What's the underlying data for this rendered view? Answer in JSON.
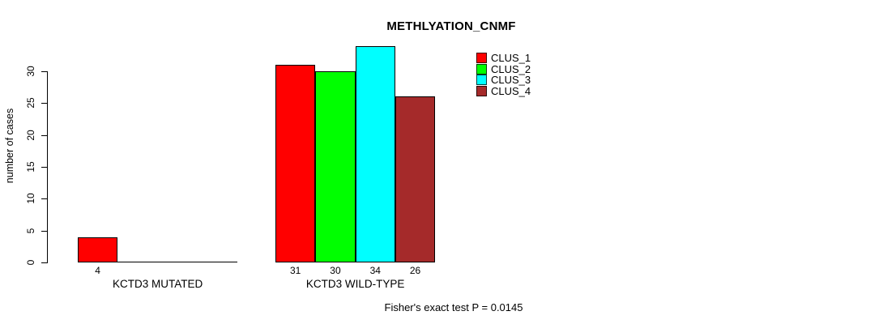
{
  "title": "METHLYATION_CNMF",
  "footer": "Fisher's exact test P = 0.0145",
  "y_axis": {
    "label": "number of cases",
    "ticks": [
      0,
      5,
      10,
      15,
      20,
      25,
      30
    ]
  },
  "legend": {
    "items": [
      {
        "label": "CLUS_1",
        "color": "#FF0000"
      },
      {
        "label": "CLUS_2",
        "color": "#00FF00"
      },
      {
        "label": "CLUS_3",
        "color": "#00FFFF"
      },
      {
        "label": "CLUS_4",
        "color": "#A52A2A"
      }
    ]
  },
  "chart_data": {
    "type": "bar",
    "title": "METHLYATION_CNMF",
    "ylabel": "number of cases",
    "ylim": [
      0,
      34
    ],
    "yticks": [
      0,
      5,
      10,
      15,
      20,
      25,
      30
    ],
    "grid": false,
    "legend_position": "top-right",
    "series": [
      "CLUS_1",
      "CLUS_2",
      "CLUS_3",
      "CLUS_4"
    ],
    "series_colors": [
      "#FF0000",
      "#00FF00",
      "#00FFFF",
      "#A52A2A"
    ],
    "categories": [
      "KCTD3 MUTATED",
      "KCTD3 WILD-TYPE"
    ],
    "groups": [
      {
        "label": "KCTD3 MUTATED",
        "values": [
          4,
          0,
          0,
          0
        ],
        "bar_labels": [
          "4",
          "",
          "",
          ""
        ]
      },
      {
        "label": "KCTD3 WILD-TYPE",
        "values": [
          31,
          30,
          34,
          26
        ],
        "bar_labels": [
          "31",
          "30",
          "34",
          "26"
        ]
      }
    ],
    "annotation": "Fisher's exact test P = 0.0145"
  }
}
